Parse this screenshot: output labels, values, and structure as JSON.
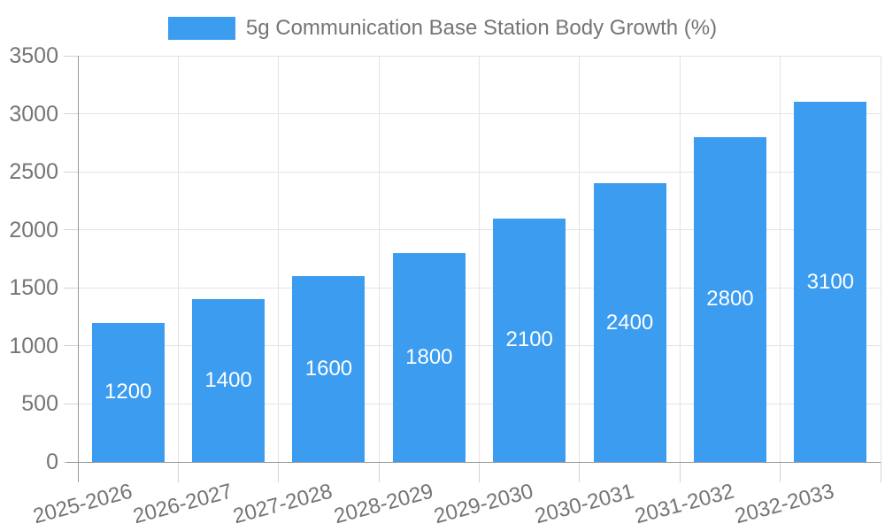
{
  "chart_data": {
    "type": "bar",
    "title": "5g Communication Base Station Body Growth (%)",
    "categories": [
      "2025-2026",
      "2026-2027",
      "2027-2028",
      "2028-2029",
      "2029-2030",
      "2030-2031",
      "2031-2032",
      "2032-2033"
    ],
    "values": [
      1200,
      1400,
      1600,
      1800,
      2100,
      2400,
      2800,
      3100
    ],
    "xlabel": "",
    "ylabel": "",
    "ylim": [
      0,
      3500
    ],
    "yticks": [
      0,
      500,
      1000,
      1500,
      2000,
      2500,
      3000,
      3500
    ],
    "grid": true,
    "legend_position": "top-center",
    "bar_color": "#3B9CF0",
    "bar_label_color": "#FFFFFF",
    "axis_color": "#999999",
    "tick_color": "#D2D2D2",
    "grid_color": "#E3E3E3",
    "text_color": "#757575"
  }
}
